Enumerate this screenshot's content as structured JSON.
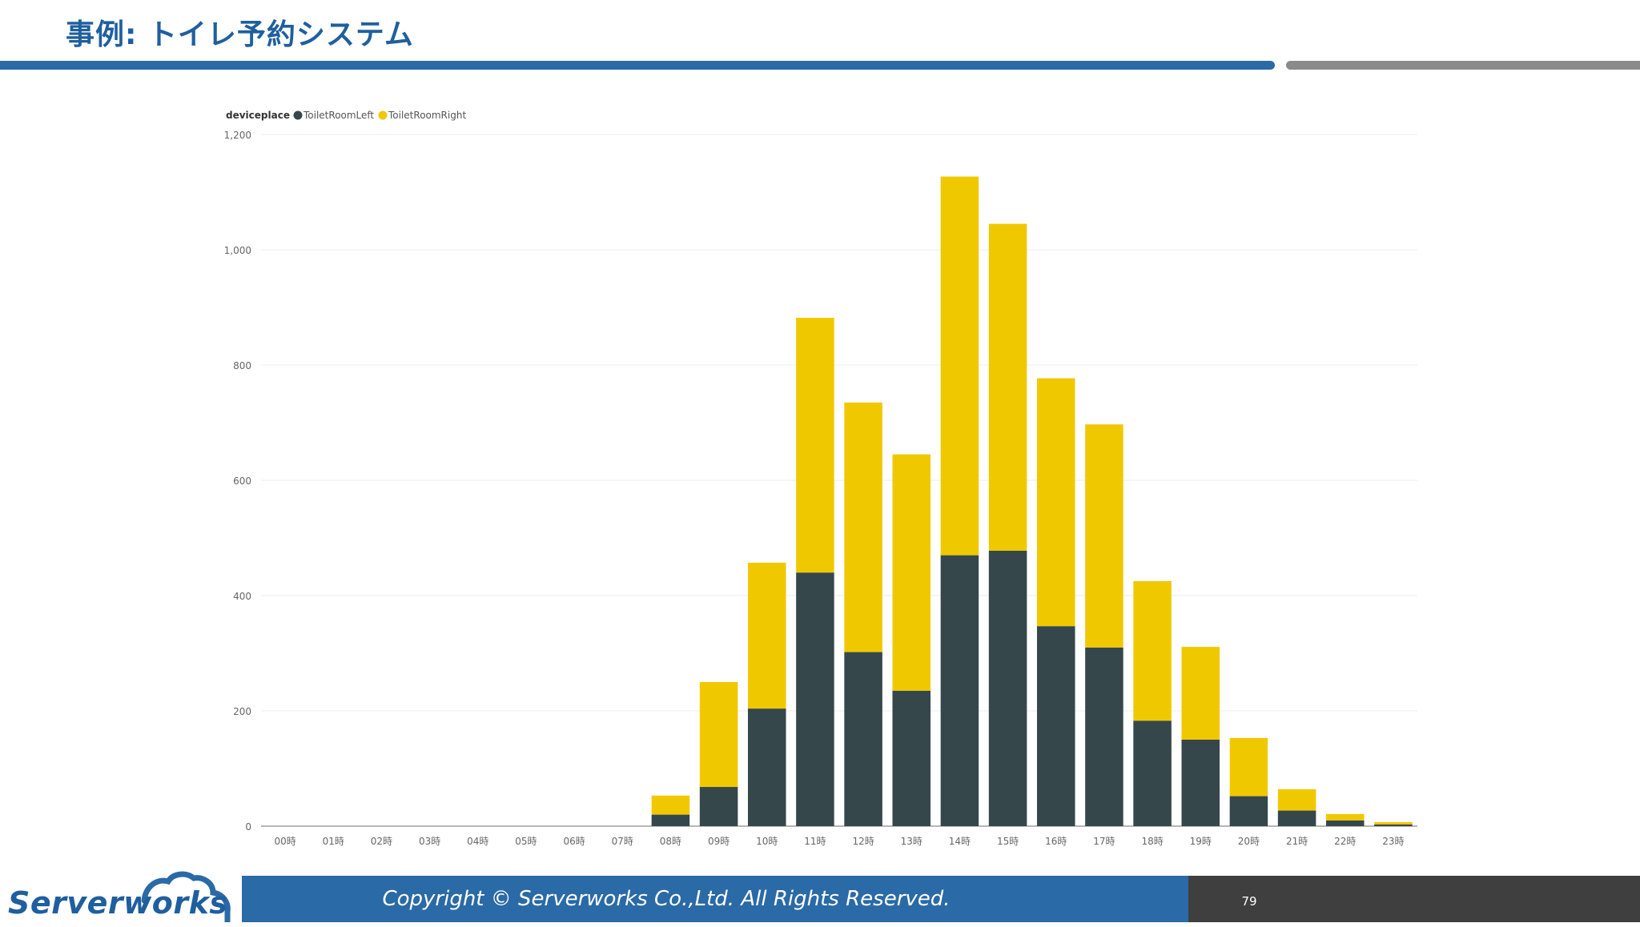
{
  "slide": {
    "title": "事例: トイレ予約システム",
    "copyright": "Copyright ©  Serverworks Co.,Ltd. All Rights Reserved.",
    "page_number": "79",
    "logo_text": "Serverworks"
  },
  "colors": {
    "title": "#1f5f9e",
    "accent_blue": "#2a6aa6",
    "accent_gray": "#8a8a8a",
    "footer_dark": "#3f3f3f",
    "series_left": "#36474b",
    "series_right": "#f0c800"
  },
  "chart_data": {
    "type": "bar",
    "stacked": true,
    "legend_title": "deviceplace",
    "legend_position": "top-left",
    "categories": [
      "00時",
      "01時",
      "02時",
      "03時",
      "04時",
      "05時",
      "06時",
      "07時",
      "08時",
      "09時",
      "10時",
      "11時",
      "12時",
      "13時",
      "14時",
      "15時",
      "16時",
      "17時",
      "18時",
      "19時",
      "20時",
      "21時",
      "22時",
      "23時"
    ],
    "series": [
      {
        "name": "ToiletRoomLeft",
        "color": "#36474b",
        "values": [
          0,
          0,
          0,
          0,
          0,
          0,
          0,
          0,
          20,
          68,
          204,
          440,
          302,
          235,
          470,
          478,
          347,
          310,
          183,
          150,
          52,
          27,
          10,
          3
        ]
      },
      {
        "name": "ToiletRoomRight",
        "color": "#f0c800",
        "values": [
          0,
          0,
          0,
          0,
          0,
          0,
          0,
          0,
          33,
          182,
          253,
          442,
          433,
          410,
          657,
          567,
          430,
          387,
          242,
          161,
          101,
          37,
          11,
          4
        ]
      }
    ],
    "yticks": [
      "0",
      "200",
      "400",
      "600",
      "800",
      "1,000",
      "1,200"
    ],
    "ylim": [
      0,
      1200
    ],
    "grid": true,
    "xlabel": "",
    "ylabel": ""
  }
}
